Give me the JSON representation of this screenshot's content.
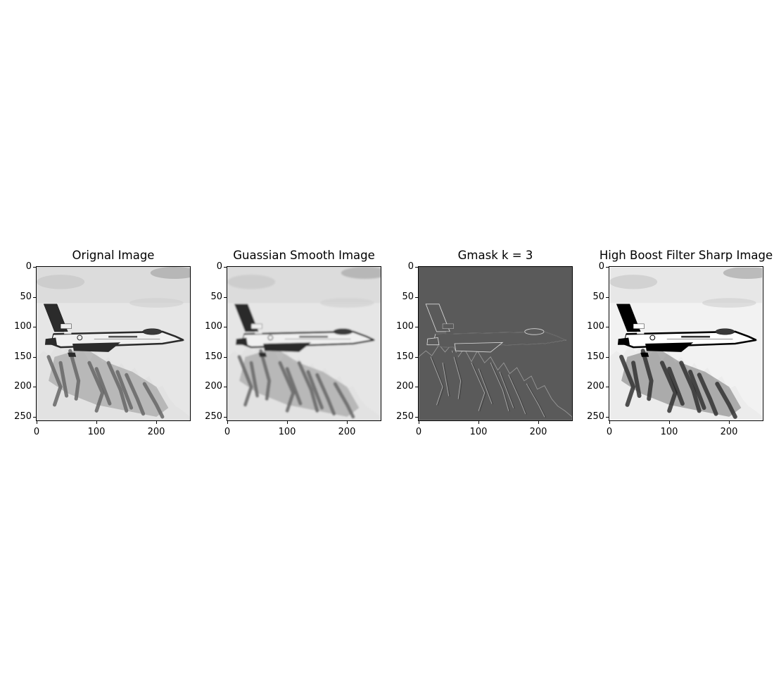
{
  "figure": {
    "panels": [
      {
        "title": "Orignal Image",
        "variant": "original",
        "xticks": [
          "0",
          "100",
          "200"
        ],
        "yticks": [
          "0",
          "50",
          "100",
          "150",
          "200",
          "250"
        ]
      },
      {
        "title": "Guassian Smooth Image",
        "variant": "smooth",
        "xticks": [
          "0",
          "100",
          "200"
        ],
        "yticks": [
          "0",
          "50",
          "100",
          "150",
          "200",
          "250"
        ]
      },
      {
        "title": "Gmask k = 3",
        "variant": "mask",
        "xticks": [
          "0",
          "100",
          "200"
        ],
        "yticks": [
          "0",
          "50",
          "100",
          "150",
          "200",
          "250"
        ]
      },
      {
        "title": "High Boost Filter Sharp Image",
        "variant": "sharp",
        "xticks": [
          "0",
          "100",
          "200"
        ],
        "yticks": [
          "0",
          "50",
          "100",
          "150",
          "200",
          "250"
        ]
      }
    ],
    "icons": {
      "jet": "fighter-jet-icon",
      "mountains": "mountains-icon"
    }
  }
}
